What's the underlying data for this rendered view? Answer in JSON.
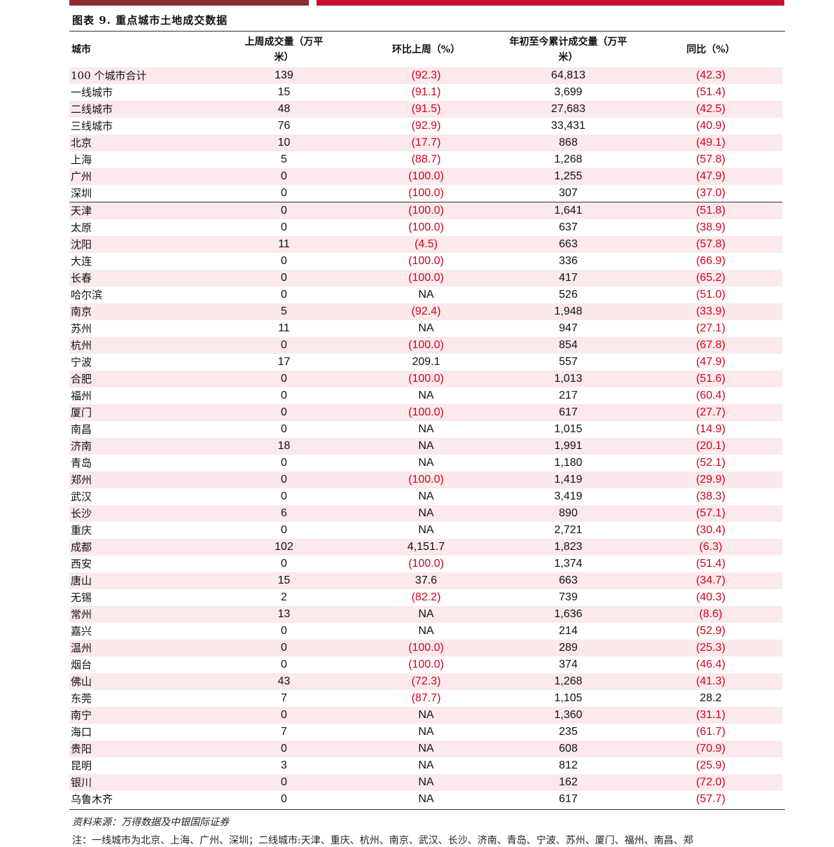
{
  "title": "图表 9. 重点城市土地成交数据",
  "header": {
    "city": "城市",
    "week_volume": "上周成交量（万平米）",
    "wow": "环比上周（%）",
    "ytd": "年初至今累计成交量（万平米）",
    "yoy": "同比（%）"
  },
  "rows": [
    {
      "city": "100 个城市合计",
      "week": "139",
      "wow": "(92.3)",
      "ytd": "64,813",
      "yoy": "(42.3)"
    },
    {
      "city": "一线城市",
      "week": "15",
      "wow": "(91.1)",
      "ytd": "3,699",
      "yoy": "(51.4)"
    },
    {
      "city": "二线城市",
      "week": "48",
      "wow": "(91.5)",
      "ytd": "27,683",
      "yoy": "(42.5)"
    },
    {
      "city": "三线城市",
      "week": "76",
      "wow": "(92.9)",
      "ytd": "33,431",
      "yoy": "(40.9)"
    },
    {
      "city": "北京",
      "week": "10",
      "wow": "(17.7)",
      "ytd": "868",
      "yoy": "(49.1)"
    },
    {
      "city": "上海",
      "week": "5",
      "wow": "(88.7)",
      "ytd": "1,268",
      "yoy": "(57.8)"
    },
    {
      "city": "广州",
      "week": "0",
      "wow": "(100.0)",
      "ytd": "1,255",
      "yoy": "(47.9)"
    },
    {
      "city": "深圳",
      "week": "0",
      "wow": "(100.0)",
      "ytd": "307",
      "yoy": "(37.0)"
    },
    {
      "city": "天津",
      "week": "0",
      "wow": "(100.0)",
      "ytd": "1,641",
      "yoy": "(51.8)"
    },
    {
      "city": "太原",
      "week": "0",
      "wow": "(100.0)",
      "ytd": "637",
      "yoy": "(38.9)"
    },
    {
      "city": "沈阳",
      "week": "11",
      "wow": "(4.5)",
      "ytd": "663",
      "yoy": "(57.8)"
    },
    {
      "city": "大连",
      "week": "0",
      "wow": "(100.0)",
      "ytd": "336",
      "yoy": "(66.9)"
    },
    {
      "city": "长春",
      "week": "0",
      "wow": "(100.0)",
      "ytd": "417",
      "yoy": "(65.2)"
    },
    {
      "city": "哈尔滨",
      "week": "0",
      "wow": "NA",
      "ytd": "526",
      "yoy": "(51.0)"
    },
    {
      "city": "南京",
      "week": "5",
      "wow": "(92.4)",
      "ytd": "1,948",
      "yoy": "(33.9)"
    },
    {
      "city": "苏州",
      "week": "11",
      "wow": "NA",
      "ytd": "947",
      "yoy": "(27.1)"
    },
    {
      "city": "杭州",
      "week": "0",
      "wow": "(100.0)",
      "ytd": "854",
      "yoy": "(67.8)"
    },
    {
      "city": "宁波",
      "week": "17",
      "wow": "209.1",
      "ytd": "557",
      "yoy": "(47.9)"
    },
    {
      "city": "合肥",
      "week": "0",
      "wow": "(100.0)",
      "ytd": "1,013",
      "yoy": "(51.6)"
    },
    {
      "city": "福州",
      "week": "0",
      "wow": "NA",
      "ytd": "217",
      "yoy": "(60.4)"
    },
    {
      "city": "厦门",
      "week": "0",
      "wow": "(100.0)",
      "ytd": "617",
      "yoy": "(27.7)"
    },
    {
      "city": "南昌",
      "week": "0",
      "wow": "NA",
      "ytd": "1,015",
      "yoy": "(14.9)"
    },
    {
      "city": "济南",
      "week": "18",
      "wow": "NA",
      "ytd": "1,991",
      "yoy": "(20.1)"
    },
    {
      "city": "青岛",
      "week": "0",
      "wow": "NA",
      "ytd": "1,180",
      "yoy": "(52.1)"
    },
    {
      "city": "郑州",
      "week": "0",
      "wow": "(100.0)",
      "ytd": "1,419",
      "yoy": "(29.9)"
    },
    {
      "city": "武汉",
      "week": "0",
      "wow": "NA",
      "ytd": "3,419",
      "yoy": "(38.3)"
    },
    {
      "city": "长沙",
      "week": "6",
      "wow": "NA",
      "ytd": "890",
      "yoy": "(57.1)"
    },
    {
      "city": "重庆",
      "week": "0",
      "wow": "NA",
      "ytd": "2,721",
      "yoy": "(30.4)"
    },
    {
      "city": "成都",
      "week": "102",
      "wow": "4,151.7",
      "ytd": "1,823",
      "yoy": "(6.3)"
    },
    {
      "city": "西安",
      "week": "0",
      "wow": "(100.0)",
      "ytd": "1,374",
      "yoy": "(51.4)"
    },
    {
      "city": "唐山",
      "week": "15",
      "wow": "37.6",
      "ytd": "663",
      "yoy": "(34.7)"
    },
    {
      "city": "无锡",
      "week": "2",
      "wow": "(82.2)",
      "ytd": "739",
      "yoy": "(40.3)"
    },
    {
      "city": "常州",
      "week": "13",
      "wow": "NA",
      "ytd": "1,636",
      "yoy": "(8.6)"
    },
    {
      "city": "嘉兴",
      "week": "0",
      "wow": "NA",
      "ytd": "214",
      "yoy": "(52.9)"
    },
    {
      "city": "温州",
      "week": "0",
      "wow": "(100.0)",
      "ytd": "289",
      "yoy": "(25.3)"
    },
    {
      "city": "烟台",
      "week": "0",
      "wow": "(100.0)",
      "ytd": "374",
      "yoy": "(46.4)"
    },
    {
      "city": "佛山",
      "week": "43",
      "wow": "(72.3)",
      "ytd": "1,268",
      "yoy": "(41.3)"
    },
    {
      "city": "东莞",
      "week": "7",
      "wow": "(87.7)",
      "ytd": "1,105",
      "yoy": "28.2"
    },
    {
      "city": "南宁",
      "week": "0",
      "wow": "NA",
      "ytd": "1,360",
      "yoy": "(31.1)"
    },
    {
      "city": "海口",
      "week": "7",
      "wow": "NA",
      "ytd": "235",
      "yoy": "(61.7)"
    },
    {
      "city": "贵阳",
      "week": "0",
      "wow": "NA",
      "ytd": "608",
      "yoy": "(70.9)"
    },
    {
      "city": "昆明",
      "week": "3",
      "wow": "NA",
      "ytd": "812",
      "yoy": "(25.9)"
    },
    {
      "city": "银川",
      "week": "0",
      "wow": "NA",
      "ytd": "162",
      "yoy": "(72.0)"
    },
    {
      "city": "乌鲁木齐",
      "week": "0",
      "wow": "NA",
      "ytd": "617",
      "yoy": "(57.7)"
    }
  ],
  "source": "资料来源：万得数据及中银国际证券",
  "note": "注：一线城市为北京、上海、广州、深圳；二线城市:天津、重庆、杭州、南京、武汉、长沙、济南、青岛、宁波、苏州、厦门、福州、南昌、郑",
  "colors": {
    "negative": "#d0021b",
    "shade": "#fbe9ec",
    "bar_dark": "#8a2d2d",
    "bar_red": "#c8102e"
  }
}
